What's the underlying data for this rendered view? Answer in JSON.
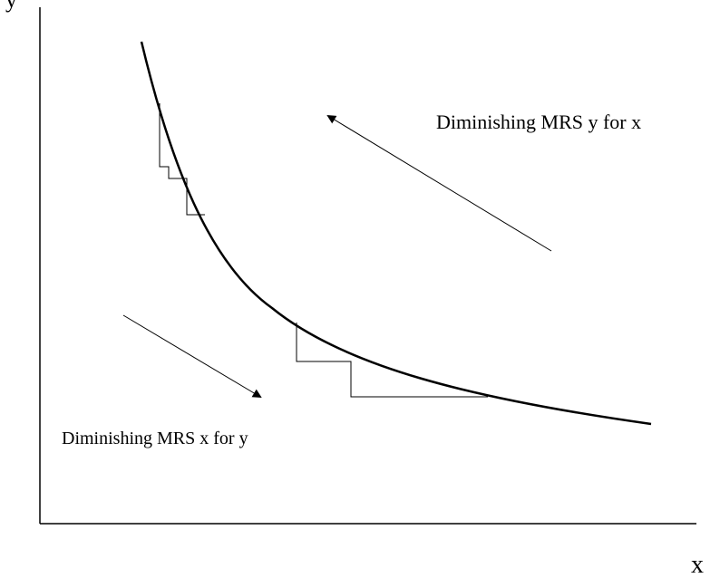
{
  "axes": {
    "y_label": "y",
    "x_label": "x"
  },
  "labels": {
    "mrs_y_for_x": "Diminishing MRS y for x",
    "mrs_x_for_y": "Diminishing MRS x for y"
  },
  "colors": {
    "ink": "#000000",
    "background": "#ffffff"
  }
}
